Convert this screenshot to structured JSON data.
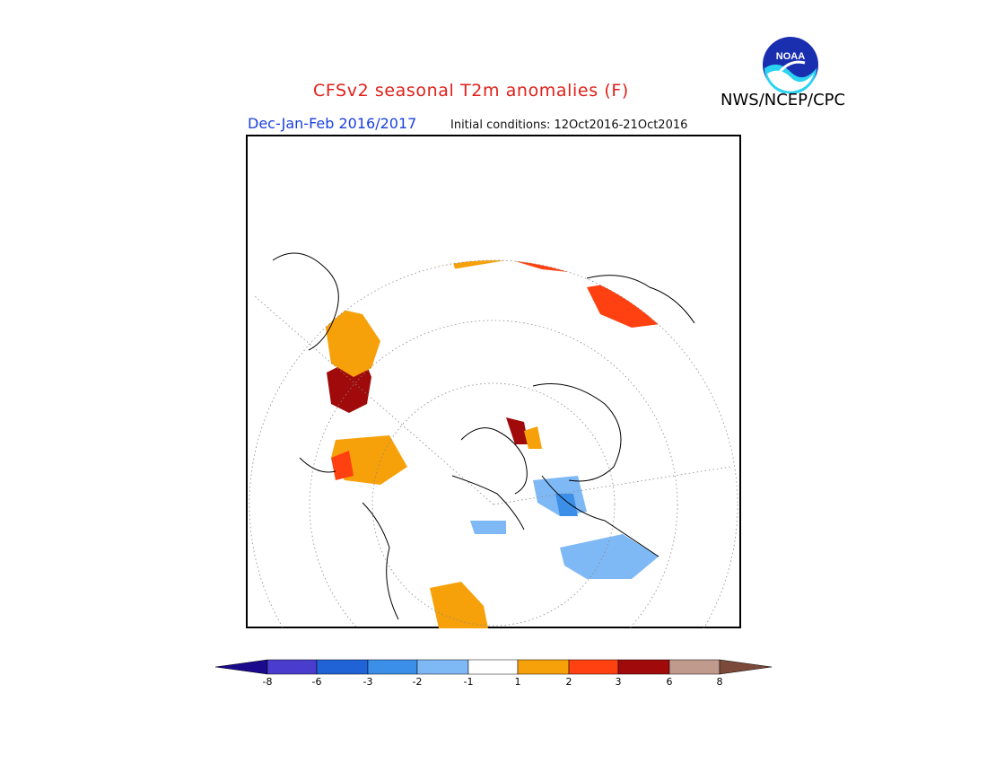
{
  "header": {
    "title": "CFSv2 seasonal T2m anomalies (F)",
    "season": "Dec-Jan-Feb 2016/2017",
    "initial_conditions": "Initial conditions: 12Oct2016-21Oct2016",
    "agency": "NWS/NCEP/CPC"
  },
  "logo": {
    "text": "NOAA",
    "icon": "noaa-logo-icon"
  },
  "map": {
    "projection": "north-polar-stereographic",
    "icon": "polar-map"
  },
  "colorbar": {
    "ticks": [
      "-8",
      "-6",
      "-3",
      "-2",
      "-1",
      "1",
      "2",
      "3",
      "6",
      "8"
    ],
    "colors": [
      "#1a0a8c",
      "#4a3ccc",
      "#1f63d6",
      "#3b8fe8",
      "#7fb9f5",
      "#ffffff",
      "#f7a10a",
      "#ff4010",
      "#a00a0a",
      "#c09a8c",
      "#7b4a3a"
    ]
  }
}
